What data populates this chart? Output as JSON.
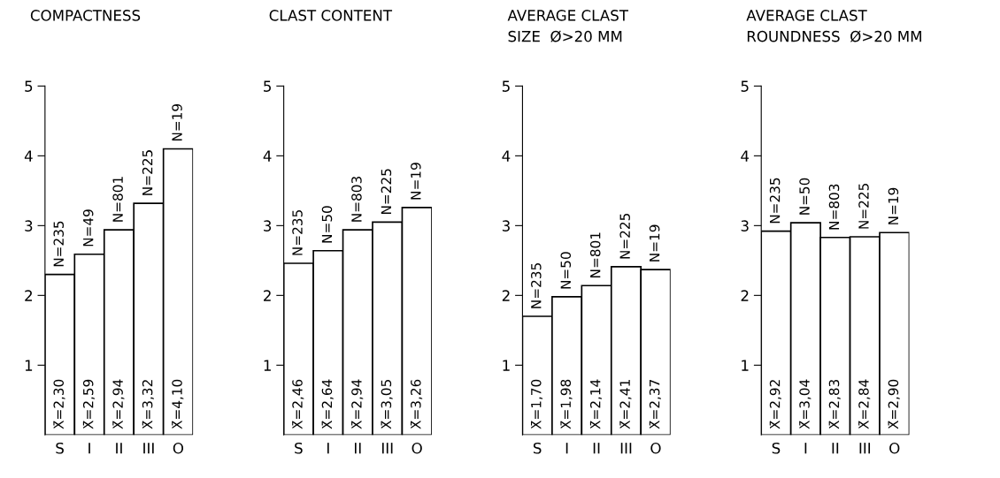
{
  "chart_data": [
    {
      "type": "bar",
      "title": "COMPACTNESS",
      "categories": [
        "S",
        "I",
        "II",
        "III",
        "O"
      ],
      "values": [
        2.3,
        2.59,
        2.94,
        3.32,
        4.1
      ],
      "color": "#ffffff",
      "value_labels": [
        "X̄=2,30",
        "X̄=2,59",
        "X̄=2,94",
        "X̄=3,32",
        "X̄=4,10"
      ],
      "ylim": [
        0,
        5
      ],
      "yticks": [
        1,
        2,
        3,
        4,
        5
      ],
      "grid": false,
      "legend": false,
      "annotations": [
        {
          "text": "N=235",
          "x": "S",
          "y": 2.3
        },
        {
          "text": "N=49",
          "x": "I",
          "y": 2.59
        },
        {
          "text": "N=801",
          "x": "II",
          "y": 2.94
        },
        {
          "text": "N=225",
          "x": "III",
          "y": 3.32
        },
        {
          "text": "N=19",
          "x": "O",
          "y": 4.1
        }
      ]
    },
    {
      "type": "bar",
      "title": "CLAST CONTENT",
      "categories": [
        "S",
        "I",
        "II",
        "III",
        "O"
      ],
      "values": [
        2.46,
        2.64,
        2.94,
        3.05,
        3.26
      ],
      "color": "#ffffff",
      "value_labels": [
        "X̄=2,46",
        "X̄=2,64",
        "X̄=2,94",
        "X̄=3,05",
        "X̄=3,26"
      ],
      "ylim": [
        0,
        5
      ],
      "yticks": [
        1,
        2,
        3,
        4,
        5
      ],
      "grid": false,
      "legend": false,
      "annotations": [
        {
          "text": "N=235",
          "x": "S",
          "y": 2.46
        },
        {
          "text": "N=50",
          "x": "I",
          "y": 2.64
        },
        {
          "text": "N=803",
          "x": "II",
          "y": 2.94
        },
        {
          "text": "N=225",
          "x": "III",
          "y": 3.05
        },
        {
          "text": "N=19",
          "x": "O",
          "y": 3.26
        }
      ]
    },
    {
      "type": "bar",
      "title": "AVERAGE CLAST\nSIZE  Ø>20 MM",
      "categories": [
        "S",
        "I",
        "II",
        "III",
        "O"
      ],
      "values": [
        1.7,
        1.98,
        2.14,
        2.41,
        2.37
      ],
      "color": "#ffffff",
      "value_labels": [
        "X̄=1,70",
        "X̄=1,98",
        "X̄=2,14",
        "X̄=2,41",
        "X̄=2,37"
      ],
      "ylim": [
        0,
        5
      ],
      "yticks": [
        1,
        2,
        3,
        4,
        5
      ],
      "grid": false,
      "legend": false,
      "annotations": [
        {
          "text": "N=235",
          "x": "S",
          "y": 1.7
        },
        {
          "text": "N=50",
          "x": "I",
          "y": 1.98
        },
        {
          "text": "N=801",
          "x": "II",
          "y": 2.14
        },
        {
          "text": "N=225",
          "x": "III",
          "y": 2.41
        },
        {
          "text": "N=19",
          "x": "O",
          "y": 2.37
        }
      ]
    },
    {
      "type": "bar",
      "title": "AVERAGE CLAST\nROUNDNESS  Ø>20 MM",
      "categories": [
        "S",
        "I",
        "II",
        "III",
        "O"
      ],
      "values": [
        2.92,
        3.04,
        2.83,
        2.84,
        2.9
      ],
      "color": "#ffffff",
      "value_labels": [
        "X̄=2,92",
        "X̄=3,04",
        "X̄=2,83",
        "X̄=2,84",
        "X̄=2,90"
      ],
      "ylim": [
        0,
        5
      ],
      "yticks": [
        1,
        2,
        3,
        4,
        5
      ],
      "grid": false,
      "legend": false,
      "annotations": [
        {
          "text": "N=235",
          "x": "S",
          "y": 2.92
        },
        {
          "text": "N=50",
          "x": "I",
          "y": 3.04
        },
        {
          "text": "N=803",
          "x": "II",
          "y": 2.83
        },
        {
          "text": "N=225",
          "x": "III",
          "y": 2.84
        },
        {
          "text": "N=19",
          "x": "O",
          "y": 2.9
        }
      ]
    }
  ]
}
